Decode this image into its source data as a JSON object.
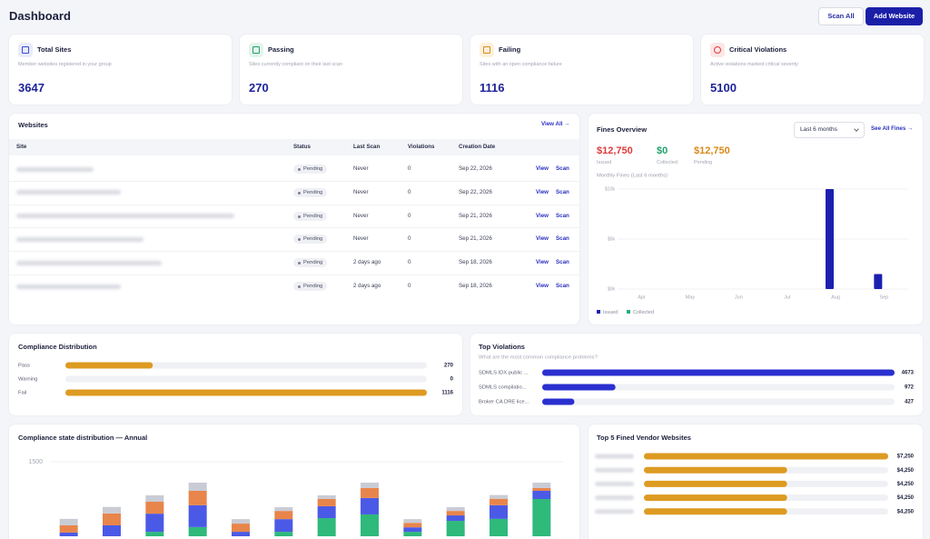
{
  "header": {
    "title": "Dashboard",
    "actions": [
      "Scan All",
      "Add Website"
    ]
  },
  "stats": [
    {
      "title": "Total Sites",
      "subtitle": "Member websites registered in your group",
      "value": 3647
    },
    {
      "title": "Passing",
      "subtitle": "Sites currently compliant on their last scan",
      "value": 270
    },
    {
      "title": "Failing",
      "subtitle": "Sites with an open compliance failure",
      "value": 1116
    },
    {
      "title": "Critical Violations",
      "subtitle": "Active violations marked critical severity",
      "value": 5100
    }
  ],
  "websites": {
    "title": "Websites",
    "link": "View All →",
    "columns": [
      "Site",
      "Status",
      "Last Scan",
      "Violations",
      "Creation Date"
    ],
    "rows": [
      {
        "status": "Pending",
        "last_scan": "Never",
        "violations": 0,
        "created": "Sep 22, 2026",
        "actions": [
          "View",
          "Scan"
        ]
      },
      {
        "status": "Pending",
        "last_scan": "Never",
        "violations": 0,
        "created": "Sep 22, 2026",
        "actions": [
          "View",
          "Scan"
        ]
      },
      {
        "status": "Pending",
        "last_scan": "Never",
        "violations": 0,
        "created": "Sep 21, 2026",
        "actions": [
          "View",
          "Scan"
        ]
      },
      {
        "status": "Pending",
        "last_scan": "Never",
        "violations": 0,
        "created": "Sep 21, 2026",
        "actions": [
          "View",
          "Scan"
        ]
      },
      {
        "status": "Pending",
        "last_scan": "2 days ago",
        "violations": 0,
        "created": "Sep 18, 2026",
        "actions": [
          "View",
          "Scan"
        ]
      },
      {
        "status": "Pending",
        "last_scan": "2 days ago",
        "violations": 0,
        "created": "Sep 18, 2026",
        "actions": [
          "View",
          "Scan"
        ]
      }
    ]
  },
  "fines": {
    "title": "Fines Overview",
    "period": "Last 6 months",
    "link": "See All Fines →",
    "stats": [
      {
        "value": "$12,750",
        "label": "Issued"
      },
      {
        "value": "$0",
        "label": "Collected"
      },
      {
        "value": "$12,750",
        "label": "Pending"
      }
    ]
  },
  "chart_data": [
    {
      "type": "bar",
      "title": "Monthly Fines (Last 6 months)",
      "categories": [
        "Apr",
        "May",
        "Jun",
        "Jul",
        "Aug",
        "Sep"
      ],
      "series": [
        {
          "name": "Issued",
          "color": "#1c20b0",
          "values": [
            0,
            0,
            0,
            0,
            10000,
            1500
          ]
        },
        {
          "name": "Collected",
          "color": "#22b07d",
          "values": [
            0,
            0,
            0,
            0,
            0,
            0
          ]
        }
      ],
      "ylim": [
        0,
        10000
      ],
      "yticks": [
        {
          "value": 0,
          "label": "$0k"
        },
        {
          "value": 5000,
          "label": "$5k"
        },
        {
          "value": 10000,
          "label": "$10k"
        }
      ],
      "grid": true
    },
    {
      "type": "hbar",
      "title": "Compliance Distribution",
      "categories": [
        "Pass",
        "Warning",
        "Fail"
      ],
      "values": [
        270,
        0,
        1116
      ],
      "color": "#dd9b22"
    },
    {
      "type": "hbar",
      "title": "Top Violations",
      "subtitle": "What are the most common compliance problems?",
      "categories": [
        "SDMLS IDX public ...",
        "SDMLS compilatio...",
        "Broker CA DRE lice..."
      ],
      "values": [
        4673,
        972,
        427
      ],
      "color": "#2a30cf"
    },
    {
      "type": "stacked-bar",
      "title": "Compliance state distribution — Annual",
      "series": [
        {
          "color": "#2fb97b",
          "values": [
            0,
            0,
            90,
            185,
            0,
            90,
            365,
            440,
            90,
            310,
            350,
            750
          ]
        },
        {
          "color": "#4b5ae6",
          "values": [
            75,
            220,
            365,
            440,
            90,
            255,
            240,
            330,
            90,
            110,
            275,
            165
          ]
        },
        {
          "color": "#e8854b",
          "values": [
            145,
            240,
            240,
            290,
            165,
            165,
            145,
            200,
            90,
            90,
            130,
            55
          ]
        },
        {
          "color": "#c9ccd5",
          "values": [
            130,
            130,
            130,
            165,
            90,
            75,
            75,
            110,
            75,
            75,
            75,
            110
          ]
        }
      ],
      "ylim": [
        0,
        1500
      ],
      "yticks": [
        1500
      ],
      "grid": true
    },
    {
      "type": "hbar",
      "title": "Top 5 Fined Vendor Websites",
      "categories": [
        null,
        null,
        null,
        null,
        null
      ],
      "values": [
        7250,
        4250,
        4250,
        4250,
        4250
      ],
      "value_labels": [
        "$7,250",
        "$4,250",
        "$4,250",
        "$4,250",
        "$4,250"
      ],
      "color": "#dd9b22"
    }
  ]
}
